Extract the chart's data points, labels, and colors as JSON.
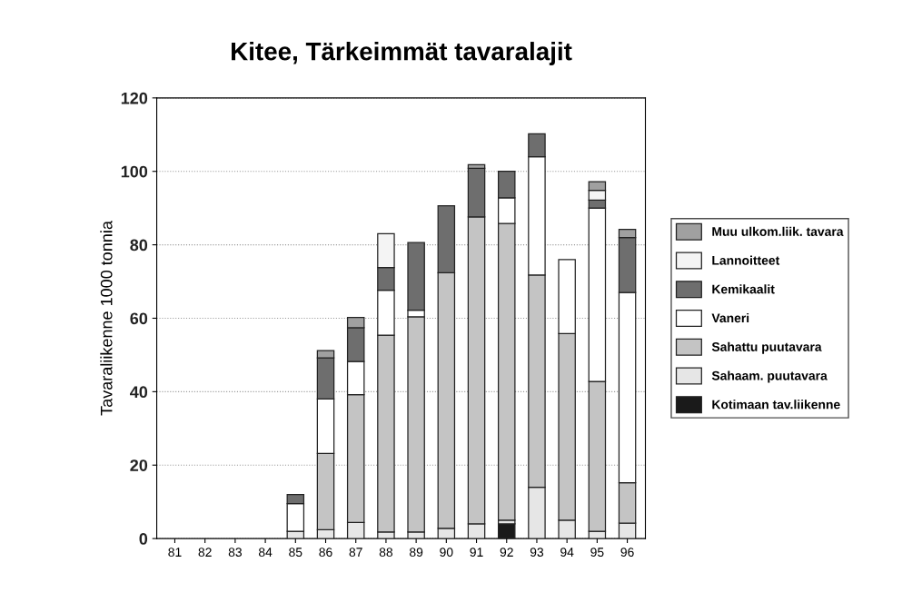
{
  "chart_data": {
    "type": "bar",
    "stacked": true,
    "title": "Kitee, Tärkeimmät tavaralajit",
    "ylabel": "Tavaraliikenne 1000 tonnia",
    "categories": [
      "81",
      "82",
      "83",
      "84",
      "85",
      "86",
      "87",
      "88",
      "89",
      "90",
      "91",
      "92",
      "93",
      "94",
      "95",
      "96"
    ],
    "series": [
      {
        "name": "Kotimaan tav.liikenne",
        "color": "#1a1a1a",
        "values": [
          0,
          0,
          0,
          0,
          0,
          0,
          0,
          0,
          0,
          0,
          0,
          4.0,
          0,
          0,
          0,
          0
        ]
      },
      {
        "name": "Sahaam. puutavara",
        "color": "#e6e6e6",
        "values": [
          0,
          0,
          0,
          0,
          2.0,
          2.4,
          4.4,
          1.8,
          1.8,
          2.8,
          4.0,
          1.0,
          14.0,
          5.0,
          2.0,
          4.2
        ]
      },
      {
        "name": "Sahattu puutavara",
        "color": "#c4c4c4",
        "values": [
          0,
          0,
          0,
          0,
          0,
          20.8,
          34.8,
          53.6,
          58.6,
          69.6,
          83.6,
          80.8,
          57.8,
          50.8,
          40.8,
          11.0
        ]
      },
      {
        "name": "Vaneri",
        "color": "#ffffff",
        "values": [
          0,
          0,
          0,
          0,
          7.5,
          14.8,
          9.0,
          12.2,
          1.8,
          0,
          0,
          7.0,
          32.2,
          20.2,
          47.2,
          51.8
        ]
      },
      {
        "name": "Kemikaalit",
        "color": "#6e6e6e",
        "values": [
          0,
          0,
          0,
          0,
          2.5,
          11.2,
          9.2,
          6.2,
          18.4,
          18.2,
          13.2,
          7.2,
          6.2,
          0,
          2.2,
          15.0
        ]
      },
      {
        "name": "Lannoitteet",
        "color": "#f4f4f4",
        "values": [
          0,
          0,
          0,
          0,
          0,
          0,
          0,
          9.2,
          0,
          0,
          0,
          0,
          0,
          0,
          2.6,
          0
        ]
      },
      {
        "name": "Muu ulkom.liik. tavara",
        "color": "#a0a0a0",
        "values": [
          0,
          0,
          0,
          0,
          0,
          2.0,
          2.8,
          0,
          0,
          0,
          1.0,
          0,
          0,
          0,
          2.4,
          2.2
        ]
      }
    ],
    "ylim": [
      0,
      120
    ],
    "yticks": [
      0,
      20,
      40,
      60,
      80,
      100,
      120
    ],
    "grid": "y",
    "legend": "right"
  }
}
